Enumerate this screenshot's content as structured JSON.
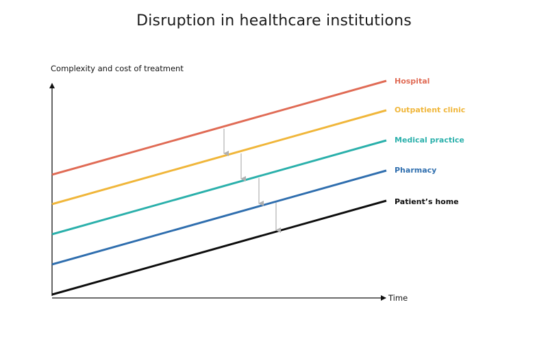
{
  "title": "Disruption in healthcare institutions",
  "axes": {
    "y_label": "Complexity and cost of treatment",
    "x_label": "Time"
  },
  "series": [
    {
      "name": "Hospital",
      "color": "#e06b55"
    },
    {
      "name": "Outpatient clinic",
      "color": "#f0b63a"
    },
    {
      "name": "Medical practice",
      "color": "#2bb0ab"
    },
    {
      "name": "Pharmacy",
      "color": "#2f6eae"
    },
    {
      "name": "Patient’s home",
      "color": "#0d0d0d"
    }
  ],
  "arrow_color": "#b0b0b0"
}
